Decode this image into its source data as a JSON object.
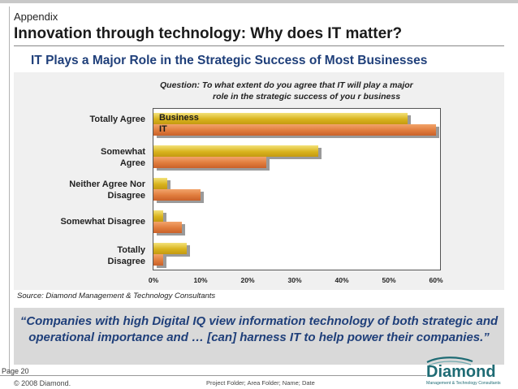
{
  "header": {
    "section": "Appendix",
    "title": "Innovation through technology: Why does IT matter?"
  },
  "chart_heading": "IT Plays a Major Role in the Strategic Success of Most Businesses",
  "question": {
    "line1": "Question:  To what extent do you agree that IT will play a major",
    "line2": "role in the strategic success of you r business"
  },
  "chart_data": {
    "type": "bar",
    "orientation": "horizontal",
    "categories": [
      "Totally Agree",
      "Somewhat Agree",
      "Neither Agree Nor Disagree",
      "Somewhat Disagree",
      "Totally Disagree"
    ],
    "series": [
      {
        "name": "Business",
        "values": [
          54,
          35,
          3,
          2,
          7
        ],
        "color": "#d9b41e"
      },
      {
        "name": "IT",
        "values": [
          60,
          24,
          10,
          6,
          2
        ],
        "color": "#e07c3c"
      }
    ],
    "xlim": [
      0,
      60
    ],
    "x_ticks": [
      "0%",
      "10%",
      "20%",
      "30%",
      "40%",
      "50%",
      "60%"
    ],
    "grid": false,
    "legend": "inline-top-left"
  },
  "source": "Source: Diamond Management & Technology Consultants",
  "quote": "“Companies with high Digital IQ view information technology of both strategic and operational importance and … [can] harness IT to help power their companies.”",
  "footer": {
    "page": "Page  20",
    "copyright": "© 2008 Diamond.",
    "path": "Project Folder; Area Folder; Name; Date"
  },
  "logo": {
    "name": "Diamond",
    "tagline": "Management & Technology Consultants"
  },
  "colors": {
    "accent_blue": "#1f3f7a",
    "business_bar": "#d9b41e",
    "it_bar": "#e07c3c",
    "logo_teal": "#1e6b74"
  }
}
